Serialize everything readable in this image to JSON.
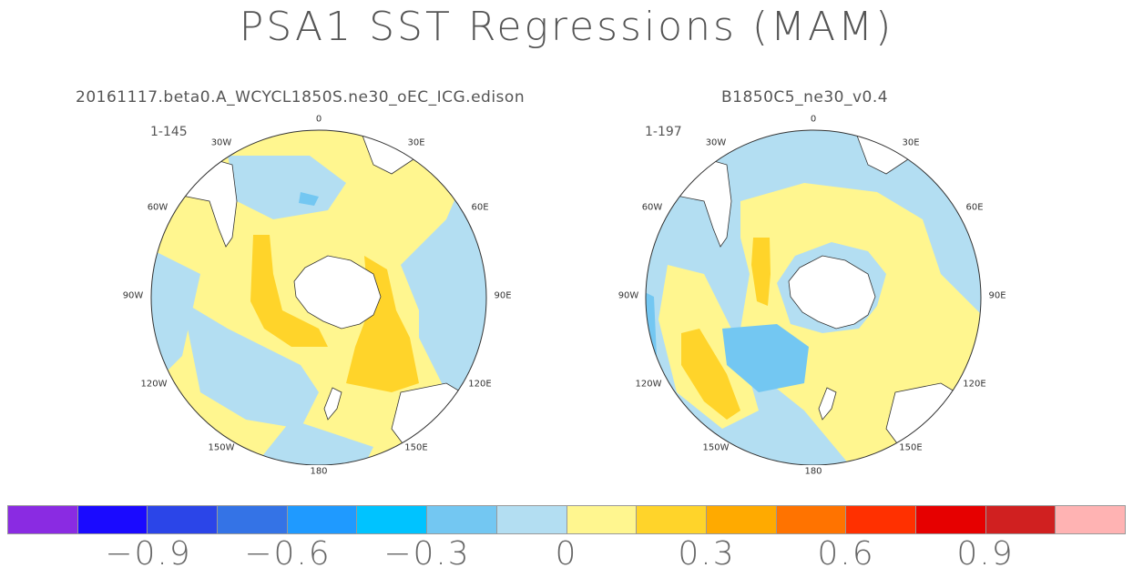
{
  "figure": {
    "title": "PSA1 SST Regressions (MAM)"
  },
  "panels": [
    {
      "subtitle": "20161117.beta0.A_WCYCL1850S.ne30_oEC_ICG.edison",
      "range": "1-145",
      "lon_labels": [
        "0",
        "30E",
        "60E",
        "90E",
        "120E",
        "150E",
        "180",
        "150W",
        "120W",
        "90W",
        "60W",
        "30W"
      ]
    },
    {
      "subtitle": "B1850C5_ne30_v0.4",
      "range": "1-197",
      "lon_labels": [
        "0",
        "30E",
        "60E",
        "90E",
        "120E",
        "150E",
        "180",
        "150W",
        "120W",
        "90W",
        "60W",
        "30W"
      ]
    }
  ],
  "colorbar": {
    "colors": [
      "#8a2be2",
      "#1a0aff",
      "#2b45e8",
      "#3473e6",
      "#1f9aff",
      "#00c3ff",
      "#73c7f2",
      "#b3def2",
      "#fff68f",
      "#ffd42a",
      "#ffaa00",
      "#ff7300",
      "#ff3000",
      "#e60000",
      "#d02020",
      "#ffb3b3"
    ],
    "labels": [
      "−0.9",
      "−0.6",
      "−0.3",
      "0",
      "0.3",
      "0.6",
      "0.9"
    ]
  },
  "chart_data": {
    "type": "map",
    "title": "PSA1 SST Regressions (MAM)",
    "projection": "south polar stereographic",
    "levels": [
      -0.9,
      -0.6,
      -0.3,
      0,
      0.3,
      0.6,
      0.9
    ]
  }
}
